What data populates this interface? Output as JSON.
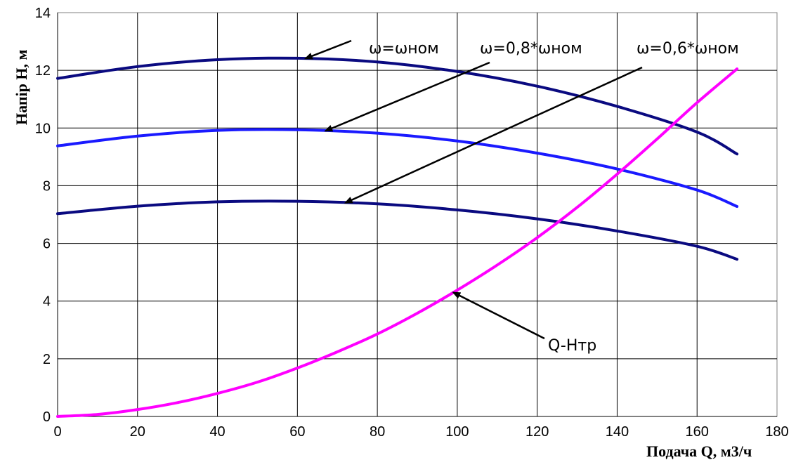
{
  "chart_data": {
    "type": "line",
    "title": "",
    "xlabel": "Подача Q, м3/ч",
    "ylabel": "Напір Н, м",
    "xlim": [
      0,
      180
    ],
    "ylim": [
      0,
      14
    ],
    "x_ticks": [
      "0",
      "20",
      "40",
      "60",
      "80",
      "100",
      "120",
      "140",
      "160",
      "180"
    ],
    "y_ticks": [
      "0",
      "2",
      "4",
      "6",
      "8",
      "10",
      "12",
      "14"
    ],
    "grid": true,
    "series": [
      {
        "name": "ω=ωном",
        "color": "#0a0a80",
        "x": [
          0,
          20,
          40,
          60,
          80,
          100,
          120,
          140,
          160,
          170
        ],
        "y": [
          11.72,
          12.13,
          12.37,
          12.42,
          12.29,
          11.96,
          11.45,
          10.75,
          9.86,
          9.1
        ]
      },
      {
        "name": "ω=0,8*ωном",
        "color": "#1a1aff",
        "x": [
          0,
          20,
          40,
          60,
          80,
          100,
          120,
          140,
          160,
          170
        ],
        "y": [
          9.38,
          9.72,
          9.92,
          9.94,
          9.82,
          9.55,
          9.13,
          8.58,
          7.85,
          7.28
        ]
      },
      {
        "name": "ω=0,6*ωном",
        "color": "#0a0a80",
        "x": [
          0,
          20,
          40,
          60,
          80,
          100,
          120,
          140,
          160,
          170
        ],
        "y": [
          7.03,
          7.29,
          7.44,
          7.46,
          7.37,
          7.16,
          6.85,
          6.43,
          5.9,
          5.45
        ]
      },
      {
        "name": "Q-Нтр",
        "color": "#ff00ff",
        "x": [
          0,
          10,
          20,
          30,
          40,
          50,
          60,
          70,
          80,
          90,
          100,
          110,
          120,
          130,
          140,
          150,
          160,
          170
        ],
        "y": [
          0,
          0.07,
          0.24,
          0.48,
          0.8,
          1.19,
          1.68,
          2.24,
          2.86,
          3.58,
          4.38,
          5.25,
          6.2,
          7.25,
          8.4,
          9.62,
          10.88,
          12.05
        ]
      }
    ],
    "annotations": [
      {
        "text": "ω=ωном",
        "points_to_series": 0,
        "at_x": 62
      },
      {
        "text": "ω=0,8*ωном",
        "points_to_series": 1,
        "at_x": 67
      },
      {
        "text": "ω=0,6*ωном",
        "points_to_series": 2,
        "at_x": 72
      },
      {
        "text": "Q-Нтр",
        "points_to_series": 3,
        "at_x": 99
      }
    ]
  }
}
